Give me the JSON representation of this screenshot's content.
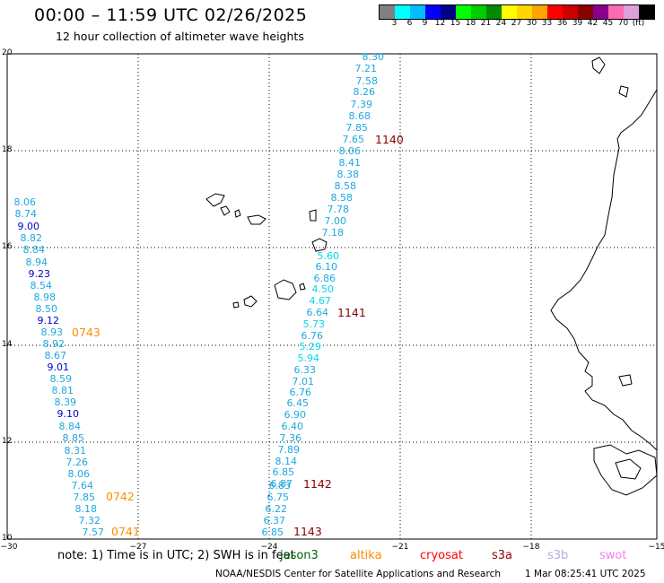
{
  "title": "00:00 – 11:59 UTC 02/26/2025",
  "subtitle": "12 hour collection of altimeter wave heights",
  "colorbar": {
    "colors": [
      "#808080",
      "#00ffff",
      "#00bfff",
      "#0000ff",
      "#00008b",
      "#00ff00",
      "#00cd00",
      "#008b00",
      "#ffff00",
      "#ffd700",
      "#ffa500",
      "#ff0000",
      "#cd0000",
      "#8b0000",
      "#8b008b",
      "#ff69b4",
      "#dda0dd",
      "#000000"
    ],
    "labels": [
      "3",
      "6",
      "9",
      "12",
      "15",
      "18",
      "21",
      "24",
      "27",
      "30",
      "33",
      "36",
      "39",
      "42",
      "45",
      "70",
      "(ft)"
    ]
  },
  "axes": {
    "x_ticks": [
      "−30",
      "−27",
      "−24",
      "−21",
      "−18",
      "−15"
    ],
    "y_ticks": [
      "20",
      "18",
      "16",
      "14",
      "12",
      "10"
    ]
  },
  "tracks": [
    {
      "id": "track-1140",
      "label": "1140",
      "color": "#8b0000",
      "values": [
        "8.30",
        "7.21",
        "7.58",
        "8.26",
        "7.39",
        "8.68",
        "7.85",
        "7.65",
        "8.06",
        "8.41",
        "8.38",
        "8.58",
        "8.58",
        "7.78",
        "7.00",
        "7.18"
      ]
    },
    {
      "id": "track-1141",
      "label": "1141",
      "color": "#8b0000",
      "values": [
        "5.60",
        "6.10",
        "6.86",
        "4.50",
        "4.67",
        "6.64",
        "5.73",
        "6.76",
        "5.29",
        "5.94",
        "6.33",
        "7.01",
        "6.76",
        "6.45",
        "6.90",
        "6.40",
        "7.36",
        "7.89",
        "8.14",
        "6.85"
      ]
    },
    {
      "id": "track-1142",
      "label": "1142",
      "color": "#8b0000",
      "values": [
        "6.87",
        "6.83",
        "6.75",
        "6.22",
        "6.37",
        "6.85"
      ]
    },
    {
      "id": "track-0743",
      "label": "0743",
      "color": "#ff8c00",
      "values": [
        "8.06",
        "8.74",
        "9.00",
        "8.82",
        "8.84",
        "8.94",
        "9.23",
        "8.54",
        "8.98",
        "8.50",
        "9.12",
        "8.93",
        "8.92",
        "8.67",
        "9.01",
        "8.59",
        "8.81",
        "8.39",
        "9.10",
        "8.84",
        "8.85"
      ]
    },
    {
      "id": "track-0742",
      "label": "0742",
      "color": "#ff8c00",
      "values": [
        "8.31",
        "7.26",
        "8.06",
        "7.64",
        "7.85",
        "8.18",
        "7.32",
        "7.57"
      ]
    },
    {
      "id": "track-0741",
      "label": "0741",
      "color": "#ff8c00",
      "values": []
    },
    {
      "id": "track-1143",
      "label": "1143",
      "color": "#8b0000",
      "values": []
    }
  ],
  "footer": {
    "note": "note:  1) Time is in UTC;  2) SWH is in feet",
    "legend": [
      {
        "name": "jason3",
        "color": "#006400"
      },
      {
        "name": "altika",
        "color": "#ff8c00"
      },
      {
        "name": "cryosat",
        "color": "#ff0000"
      },
      {
        "name": "s3a",
        "color": "#8b0000"
      },
      {
        "name": "s3b",
        "color": "#b8a6e0"
      },
      {
        "name": "swot",
        "color": "#ee82ee"
      }
    ],
    "credit": "NOAA/NESDIS Center for Satellite Applications and Research",
    "timestamp": "1 Mar 08:25:41 UTC 2025"
  }
}
